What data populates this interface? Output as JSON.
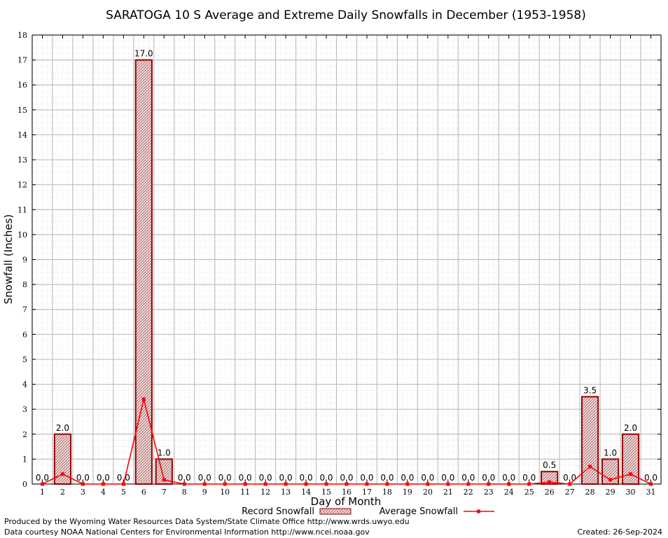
{
  "chart_data": {
    "type": "bar",
    "title": "SARATOGA 10 S Average and Extreme Daily Snowfalls in December (1953-1958)",
    "xlabel": "Day of Month",
    "ylabel": "Snowfall (Inches)",
    "ylim": [
      0,
      18
    ],
    "yticks": [
      "0",
      "1",
      "2",
      "3",
      "4",
      "5",
      "6",
      "7",
      "8",
      "9",
      "10",
      "11",
      "12",
      "13",
      "14",
      "15",
      "16",
      "17",
      "18"
    ],
    "grid": true,
    "legend_position": "bottom",
    "categories": [
      "1",
      "2",
      "3",
      "4",
      "5",
      "6",
      "7",
      "8",
      "9",
      "10",
      "11",
      "12",
      "13",
      "14",
      "15",
      "16",
      "17",
      "18",
      "19",
      "20",
      "21",
      "22",
      "23",
      "24",
      "25",
      "26",
      "27",
      "28",
      "29",
      "30",
      "31"
    ],
    "series": [
      {
        "name": "Record Snowfall",
        "kind": "bar",
        "color": "#990000",
        "values": [
          0,
          2,
          0,
          0,
          0,
          17,
          1,
          0,
          0,
          0,
          0,
          0,
          0,
          0,
          0,
          0,
          0,
          0,
          0,
          0,
          0,
          0,
          0,
          0,
          0,
          0.5,
          0,
          3.5,
          1,
          2,
          0
        ],
        "labels": [
          "0.0",
          "2.0",
          "0.0",
          "0.0",
          "0.0",
          "17.0",
          "1.0",
          "0.0",
          "0.0",
          "0.0",
          "0.0",
          "0.0",
          "0.0",
          "0.0",
          "0.0",
          "0.0",
          "0.0",
          "0.0",
          "0.0",
          "0.0",
          "0.0",
          "0.0",
          "0.0",
          "0.0",
          "0.0",
          "0.5",
          "0.0",
          "3.5",
          "1.0",
          "2.0",
          "0.0"
        ]
      },
      {
        "name": "Average Snowfall",
        "kind": "line",
        "color": "#ff0000",
        "values": [
          0,
          0.4,
          0,
          0,
          0,
          3.4,
          0.17,
          0,
          0,
          0,
          0,
          0,
          0,
          0,
          0,
          0,
          0,
          0,
          0,
          0,
          0,
          0,
          0,
          0,
          0,
          0.08,
          0,
          0.7,
          0.17,
          0.4,
          0
        ]
      }
    ]
  },
  "footer": {
    "produced": "Produced by the Wyoming Water Resources Data System/State Climate Office http://www.wrds.uwyo.edu",
    "courtesy": "Data courtesy NOAA National Centers for Environmental Information http://www.ncei.noaa.gov",
    "created": "Created:  26-Sep-2024"
  },
  "colors": {
    "bar_fill": "#c8a8a8",
    "bar_stroke": "#990000",
    "line": "#ff0000",
    "grid_major": "#bfbfbf",
    "grid_minor": "#d8d8d8"
  }
}
